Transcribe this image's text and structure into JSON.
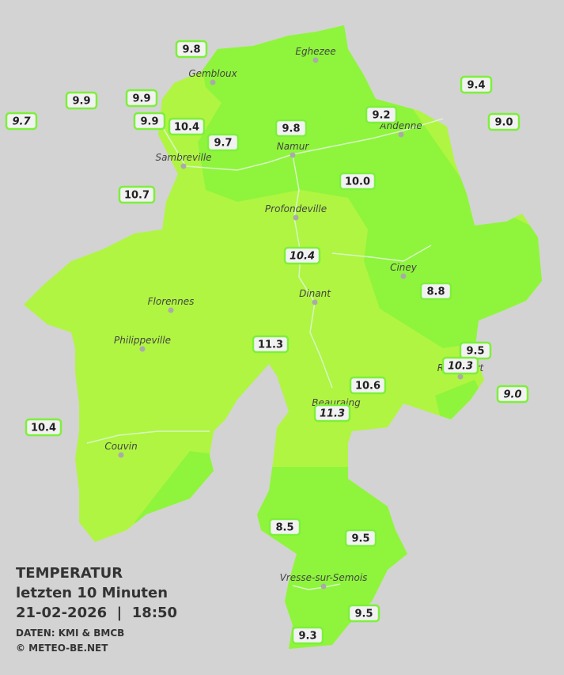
{
  "map": {
    "cities": [
      "Eghezee",
      "Gembloux",
      "Andenne",
      "Namur",
      "Sambreville",
      "Profondeville",
      "Ciney",
      "Dinant",
      "Florennes",
      "Philippeville",
      "Rochefort",
      "Beauraing",
      "Couvin",
      "Vresse-sur-Semois"
    ],
    "stations": [
      {
        "label": "9.8"
      },
      {
        "label": "9.9"
      },
      {
        "label": "9.9"
      },
      {
        "label": "9.7",
        "italic": true
      },
      {
        "label": "9.9"
      },
      {
        "label": "10.4"
      },
      {
        "label": "9.7"
      },
      {
        "label": "9.8"
      },
      {
        "label": "9.2"
      },
      {
        "label": "9.4"
      },
      {
        "label": "9.0"
      },
      {
        "label": "10.7"
      },
      {
        "label": "10.0"
      },
      {
        "label": "10.4",
        "italic": true
      },
      {
        "label": "8.8"
      },
      {
        "label": "11.3"
      },
      {
        "label": "9.5"
      },
      {
        "label": "10.3",
        "italic": true
      },
      {
        "label": "9.0",
        "italic": true
      },
      {
        "label": "10.6"
      },
      {
        "label": "11.3",
        "italic": true
      },
      {
        "label": "10.4"
      },
      {
        "label": "8.5"
      },
      {
        "label": "9.5"
      },
      {
        "label": "9.5"
      },
      {
        "label": "9.3"
      }
    ]
  },
  "legend": {
    "title": "TEMPERATUR",
    "period": "letzten 10 Minuten",
    "datetime": "21-02-2026  |  18:50",
    "source": "DATEN: KMI & BMCB",
    "copyright": "© METEO-BE.NET"
  }
}
